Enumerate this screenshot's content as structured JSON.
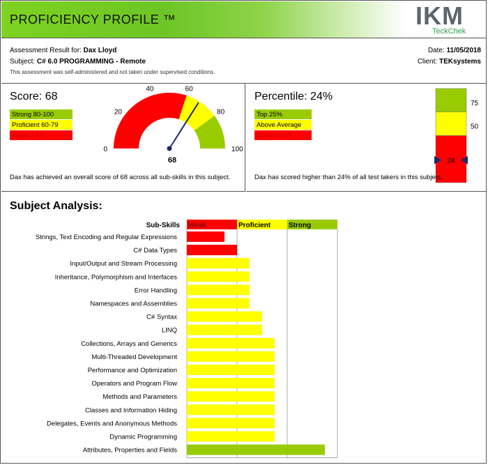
{
  "header": {
    "title": "PROFICIENCY PROFILE ™",
    "logo_main": "IKM",
    "logo_sub": "TeckChek"
  },
  "info": {
    "result_label": "Assessment Result for:",
    "result_name": "Dax Lloyd",
    "subject_label": "Subject:",
    "subject_name": "C# 6.0 PROGRAMMING - Remote",
    "note": "This assessment was self-administered and not taken under supervised conditions.",
    "date_label": "Date:",
    "date_value": "11/05/2018",
    "client_label": "Client:",
    "client_value": "TEKsystems"
  },
  "score": {
    "title": "Score: 68",
    "value": 68,
    "legend": [
      {
        "label": "Strong 80-100",
        "color": "#99cc00",
        "text_color": "#000000"
      },
      {
        "label": "Proficient 60-79",
        "color": "#ffff00",
        "text_color": "#000000"
      },
      {
        "label": "Weak 1-59",
        "color": "#ff0000",
        "text_color": "#cc0000"
      }
    ],
    "gauge_ticks": [
      "0",
      "20",
      "40",
      "60",
      "80",
      "100"
    ],
    "value_label": "68",
    "description": "Dax has achieved an overall score of 68 across all sub-skills in this subject."
  },
  "percentile": {
    "title": "Percentile: 24%",
    "value": 24,
    "legend": [
      {
        "label": "Top 25%",
        "color": "#99cc00",
        "text_color": "#000000"
      },
      {
        "label": "Above Average",
        "color": "#ffff00",
        "text_color": "#000000"
      },
      {
        "label": "Bottom Half",
        "color": "#ff0000",
        "text_color": "#cc0000"
      }
    ],
    "bar_ticks": [
      "75",
      "50"
    ],
    "marker_label": "24",
    "description": "Dax has scored higher than 24% of all test takers in this subject."
  },
  "subject": {
    "title": "Subject Analysis:",
    "subskills_header": "Sub-Skills",
    "bands": [
      {
        "label": "Weak",
        "color": "#ff0000",
        "text_color": "#880000"
      },
      {
        "label": "Proficient",
        "color": "#ffff00",
        "text_color": "#000000"
      },
      {
        "label": "Strong",
        "color": "#99cc00",
        "text_color": "#000000"
      }
    ]
  },
  "chart_data": {
    "type": "bar",
    "orientation": "horizontal",
    "x_range": [
      0,
      120
    ],
    "band_ranges": [
      [
        0,
        40
      ],
      [
        40,
        80
      ],
      [
        80,
        120
      ]
    ],
    "categories": [
      "Strings, Text Encoding and Regular Expressions",
      "C# Data Types",
      "Input/Output and Stream Processing",
      "Inheritance, Polymorphism and Interfaces",
      "Error Handling",
      "Namespaces and Assemblies",
      "C# Syntax",
      "LINQ",
      "Collections, Arrays and Generics",
      "Multi-Threaded Development",
      "Performance and Optimization",
      "Operators and Program Flow",
      "Methods and Parameters",
      "Classes and Information Hiding",
      "Delegates, Events and Anonymous Methods",
      "Dynamic Programming",
      "Attributes, Properties and Fields"
    ],
    "values": [
      30,
      40,
      50,
      50,
      50,
      50,
      60,
      60,
      70,
      70,
      70,
      70,
      70,
      70,
      70,
      70,
      110
    ],
    "bar_colors": [
      "#ff0000",
      "#ff0000",
      "#ffff00",
      "#ffff00",
      "#ffff00",
      "#ffff00",
      "#ffff00",
      "#ffff00",
      "#ffff00",
      "#ffff00",
      "#ffff00",
      "#ffff00",
      "#ffff00",
      "#ffff00",
      "#ffff00",
      "#ffff00",
      "#99cc00"
    ]
  }
}
